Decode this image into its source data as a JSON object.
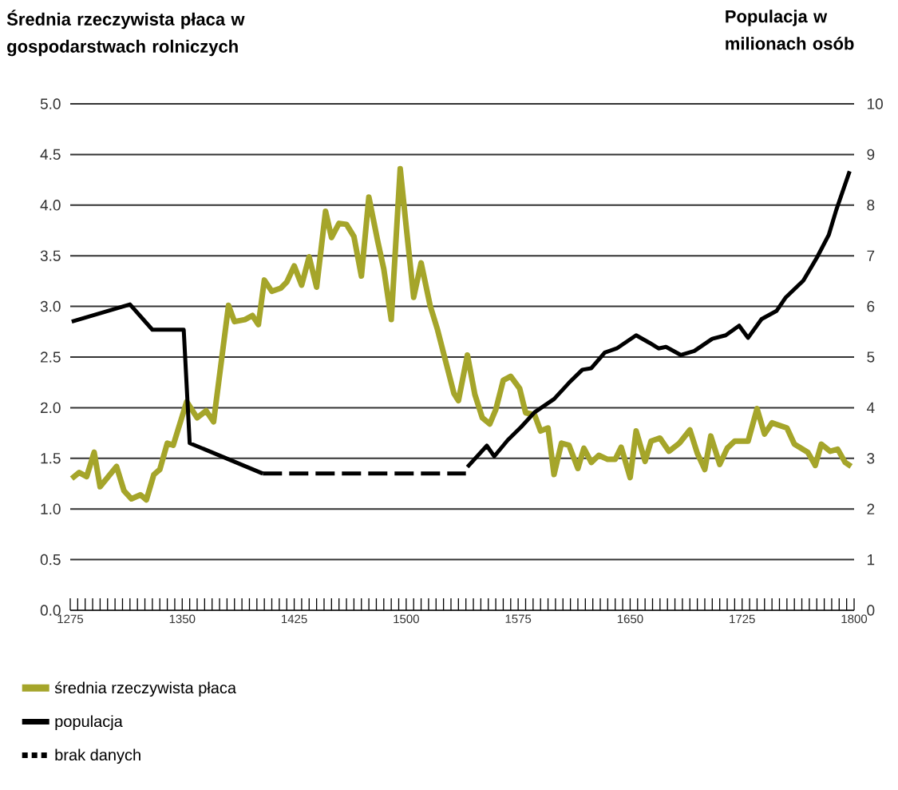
{
  "chart_data": {
    "type": "line",
    "ylabel": "Średnia rzeczywista płaca w gospodarstwach rolniczych",
    "y2label": "Populacja w milionach osób",
    "xlim": [
      1275,
      1800
    ],
    "ylim": [
      0,
      5
    ],
    "y2lim": [
      0,
      10
    ],
    "xticks": [
      1275,
      {
        "value": 1280,
        "label": null
      },
      {
        "value": 1285,
        "label": null
      },
      {
        "value": 1290,
        "label": null
      },
      {
        "value": 1295,
        "label": null
      },
      {
        "value": 1300,
        "label": null
      },
      {
        "value": 1305,
        "label": null
      },
      {
        "value": 1310,
        "label": null
      },
      {
        "value": 1315,
        "label": null
      },
      {
        "value": 1320,
        "label": null
      },
      {
        "value": 1325,
        "label": null
      },
      {
        "value": 1330,
        "label": null
      },
      {
        "value": 1335,
        "label": null
      },
      {
        "value": 1340,
        "label": null
      },
      {
        "value": 1345,
        "label": null
      },
      1350,
      {
        "value": 1355,
        "label": null
      },
      {
        "value": 1360,
        "label": null
      },
      {
        "value": 1365,
        "label": null
      },
      {
        "value": 1370,
        "label": null
      },
      {
        "value": 1375,
        "label": null
      },
      {
        "value": 1380,
        "label": null
      },
      {
        "value": 1385,
        "label": null
      },
      {
        "value": 1390,
        "label": null
      },
      {
        "value": 1395,
        "label": null
      },
      {
        "value": 1400,
        "label": null
      },
      {
        "value": 1405,
        "label": null
      },
      {
        "value": 1410,
        "label": null
      },
      {
        "value": 1415,
        "label": null
      },
      {
        "value": 1420,
        "label": null
      },
      1425,
      {
        "value": 1430,
        "label": null
      },
      {
        "value": 1435,
        "label": null
      },
      {
        "value": 1440,
        "label": null
      },
      {
        "value": 1445,
        "label": null
      },
      {
        "value": 1450,
        "label": null
      },
      {
        "value": 1455,
        "label": null
      },
      {
        "value": 1460,
        "label": null
      },
      {
        "value": 1465,
        "label": null
      },
      {
        "value": 1470,
        "label": null
      },
      {
        "value": 1475,
        "label": null
      },
      {
        "value": 1480,
        "label": null
      },
      {
        "value": 1485,
        "label": null
      },
      {
        "value": 1490,
        "label": null
      },
      {
        "value": 1495,
        "label": null
      },
      1500,
      {
        "value": 1505,
        "label": null
      },
      {
        "value": 1510,
        "label": null
      },
      {
        "value": 1515,
        "label": null
      },
      {
        "value": 1520,
        "label": null
      },
      {
        "value": 1525,
        "label": null
      },
      {
        "value": 1530,
        "label": null
      },
      {
        "value": 1535,
        "label": null
      },
      {
        "value": 1540,
        "label": null
      },
      {
        "value": 1545,
        "label": null
      },
      {
        "value": 1550,
        "label": null
      },
      {
        "value": 1555,
        "label": null
      },
      {
        "value": 1560,
        "label": null
      },
      {
        "value": 1565,
        "label": null
      },
      {
        "value": 1570,
        "label": null
      },
      1575,
      {
        "value": 1580,
        "label": null
      },
      {
        "value": 1585,
        "label": null
      },
      {
        "value": 1590,
        "label": null
      },
      {
        "value": 1595,
        "label": null
      },
      {
        "value": 1600,
        "label": null
      },
      {
        "value": 1605,
        "label": null
      },
      {
        "value": 1610,
        "label": null
      },
      {
        "value": 1615,
        "label": null
      },
      {
        "value": 1620,
        "label": null
      },
      {
        "value": 1625,
        "label": null
      },
      {
        "value": 1630,
        "label": null
      },
      {
        "value": 1635,
        "label": null
      },
      {
        "value": 1640,
        "label": null
      },
      {
        "value": 1645,
        "label": null
      },
      1650,
      {
        "value": 1655,
        "label": null
      },
      {
        "value": 1660,
        "label": null
      },
      {
        "value": 1665,
        "label": null
      },
      {
        "value": 1670,
        "label": null
      },
      {
        "value": 1675,
        "label": null
      },
      {
        "value": 1680,
        "label": null
      },
      {
        "value": 1685,
        "label": null
      },
      {
        "value": 1690,
        "label": null
      },
      {
        "value": 1695,
        "label": null
      },
      {
        "value": 1700,
        "label": null
      },
      {
        "value": 1705,
        "label": null
      },
      {
        "value": 1710,
        "label": null
      },
      {
        "value": 1715,
        "label": null
      },
      {
        "value": 1720,
        "label": null
      },
      1725,
      {
        "value": 1730,
        "label": null
      },
      {
        "value": 1735,
        "label": null
      },
      {
        "value": 1740,
        "label": null
      },
      {
        "value": 1745,
        "label": null
      },
      {
        "value": 1750,
        "label": null
      },
      {
        "value": 1755,
        "label": null
      },
      {
        "value": 1760,
        "label": null
      },
      {
        "value": 1765,
        "label": null
      },
      {
        "value": 1770,
        "label": null
      },
      {
        "value": 1775,
        "label": null
      },
      {
        "value": 1780,
        "label": null
      },
      {
        "value": 1785,
        "label": null
      },
      {
        "value": 1790,
        "label": null
      },
      {
        "value": 1795,
        "label": null
      },
      1800
    ],
    "yticks": [
      {
        "value": 0,
        "label": "0.0"
      },
      {
        "value": 0.5,
        "label": "0.5"
      },
      {
        "value": 1,
        "label": "1.0"
      },
      {
        "value": 1.5,
        "label": "1.5"
      },
      {
        "value": 2,
        "label": "2.0"
      },
      {
        "value": 2.5,
        "label": "2.5"
      },
      {
        "value": 3,
        "label": "3.0"
      },
      {
        "value": 3.5,
        "label": "3.5"
      },
      {
        "value": 4,
        "label": "4.0"
      },
      {
        "value": 4.5,
        "label": "4.5"
      },
      {
        "value": 5,
        "label": "5.0"
      }
    ],
    "y2ticks": [
      0,
      1,
      2,
      3,
      4,
      5,
      6,
      7,
      8,
      9,
      10
    ],
    "grid": "y",
    "legend": "bottom left",
    "marker": "none",
    "series": [
      {
        "name": "średnia rzeczywista płaca",
        "color": "#a5a52a",
        "line_style": "solid",
        "x": [
          1276,
          1281,
          1286,
          1291,
          1295,
          1306,
          1311,
          1316,
          1322,
          1326,
          1331,
          1335,
          1340,
          1344,
          1353,
          1360,
          1366,
          1371,
          1381,
          1385,
          1392,
          1397,
          1401,
          1405,
          1410,
          1416,
          1420,
          1425,
          1430,
          1435,
          1440,
          1446,
          1450,
          1455,
          1460,
          1465,
          1470,
          1475,
          1481,
          1485,
          1490,
          1496,
          1500,
          1505,
          1510,
          1516,
          1521,
          1532,
          1535,
          1541,
          1546,
          1551,
          1556,
          1560,
          1565,
          1570,
          1576,
          1580,
          1586,
          1590,
          1595,
          1599,
          1604,
          1609,
          1615,
          1619,
          1624,
          1629,
          1635,
          1640,
          1644,
          1650,
          1654,
          1660,
          1664,
          1670,
          1676,
          1683,
          1690,
          1695,
          1700,
          1704,
          1710,
          1715,
          1720,
          1729,
          1735,
          1740,
          1745,
          1755,
          1760,
          1769,
          1774,
          1778,
          1784,
          1789,
          1794,
          1798
        ],
        "values": [
          1.3,
          1.36,
          1.32,
          1.56,
          1.22,
          1.42,
          1.18,
          1.1,
          1.14,
          1.09,
          1.34,
          1.39,
          1.65,
          1.63,
          2.06,
          1.9,
          1.97,
          1.86,
          3.01,
          2.85,
          2.87,
          2.91,
          2.82,
          3.26,
          3.15,
          3.18,
          3.24,
          3.4,
          3.21,
          3.49,
          3.19,
          3.94,
          3.68,
          3.82,
          3.81,
          3.69,
          3.3,
          4.08,
          3.64,
          3.37,
          2.87,
          4.36,
          3.79,
          3.09,
          3.43,
          3.01,
          2.77,
          2.14,
          2.07,
          2.52,
          2.13,
          1.9,
          1.84,
          1.98,
          2.27,
          2.31,
          2.19,
          1.95,
          1.93,
          1.77,
          1.8,
          1.34,
          1.65,
          1.63,
          1.4,
          1.6,
          1.46,
          1.53,
          1.49,
          1.49,
          1.61,
          1.31,
          1.77,
          1.47,
          1.67,
          1.7,
          1.57,
          1.65,
          1.78,
          1.55,
          1.39,
          1.72,
          1.44,
          1.6,
          1.67,
          1.67,
          1.99,
          1.74,
          1.85,
          1.8,
          1.64,
          1.56,
          1.43,
          1.64,
          1.57,
          1.59,
          1.46,
          1.42
        ]
      },
      {
        "name": "populacja",
        "color": "#000000",
        "line_style": "solid",
        "axis": "y2",
        "x": [
          1276,
          1315,
          1330,
          1351,
          1355,
          1404,
          1470,
          1541,
          1554,
          1559,
          1568,
          1577,
          1586,
          1599,
          1609,
          1618,
          1624,
          1633,
          1641,
          1654,
          1663,
          1669,
          1674,
          1684,
          1693,
          1705,
          1714,
          1723,
          1729,
          1738,
          1748,
          1754,
          1766,
          1775,
          1783,
          1788,
          1797
        ],
        "values": [
          5.7,
          6.04,
          5.54,
          5.54,
          3.3,
          2.7,
          null,
          2.83,
          3.25,
          3.04,
          3.36,
          3.62,
          3.91,
          4.17,
          4.49,
          4.75,
          4.78,
          5.09,
          5.17,
          5.43,
          5.28,
          5.17,
          5.2,
          5.04,
          5.12,
          5.36,
          5.43,
          5.62,
          5.38,
          5.75,
          5.91,
          6.17,
          6.51,
          6.96,
          7.41,
          7.9,
          8.67
        ]
      },
      {
        "name": "brak danych",
        "color": "#000000",
        "line_style": "dashed",
        "axis": "y2",
        "x": [
          1404,
          1540
        ],
        "values": [
          2.7,
          2.7
        ]
      }
    ]
  }
}
